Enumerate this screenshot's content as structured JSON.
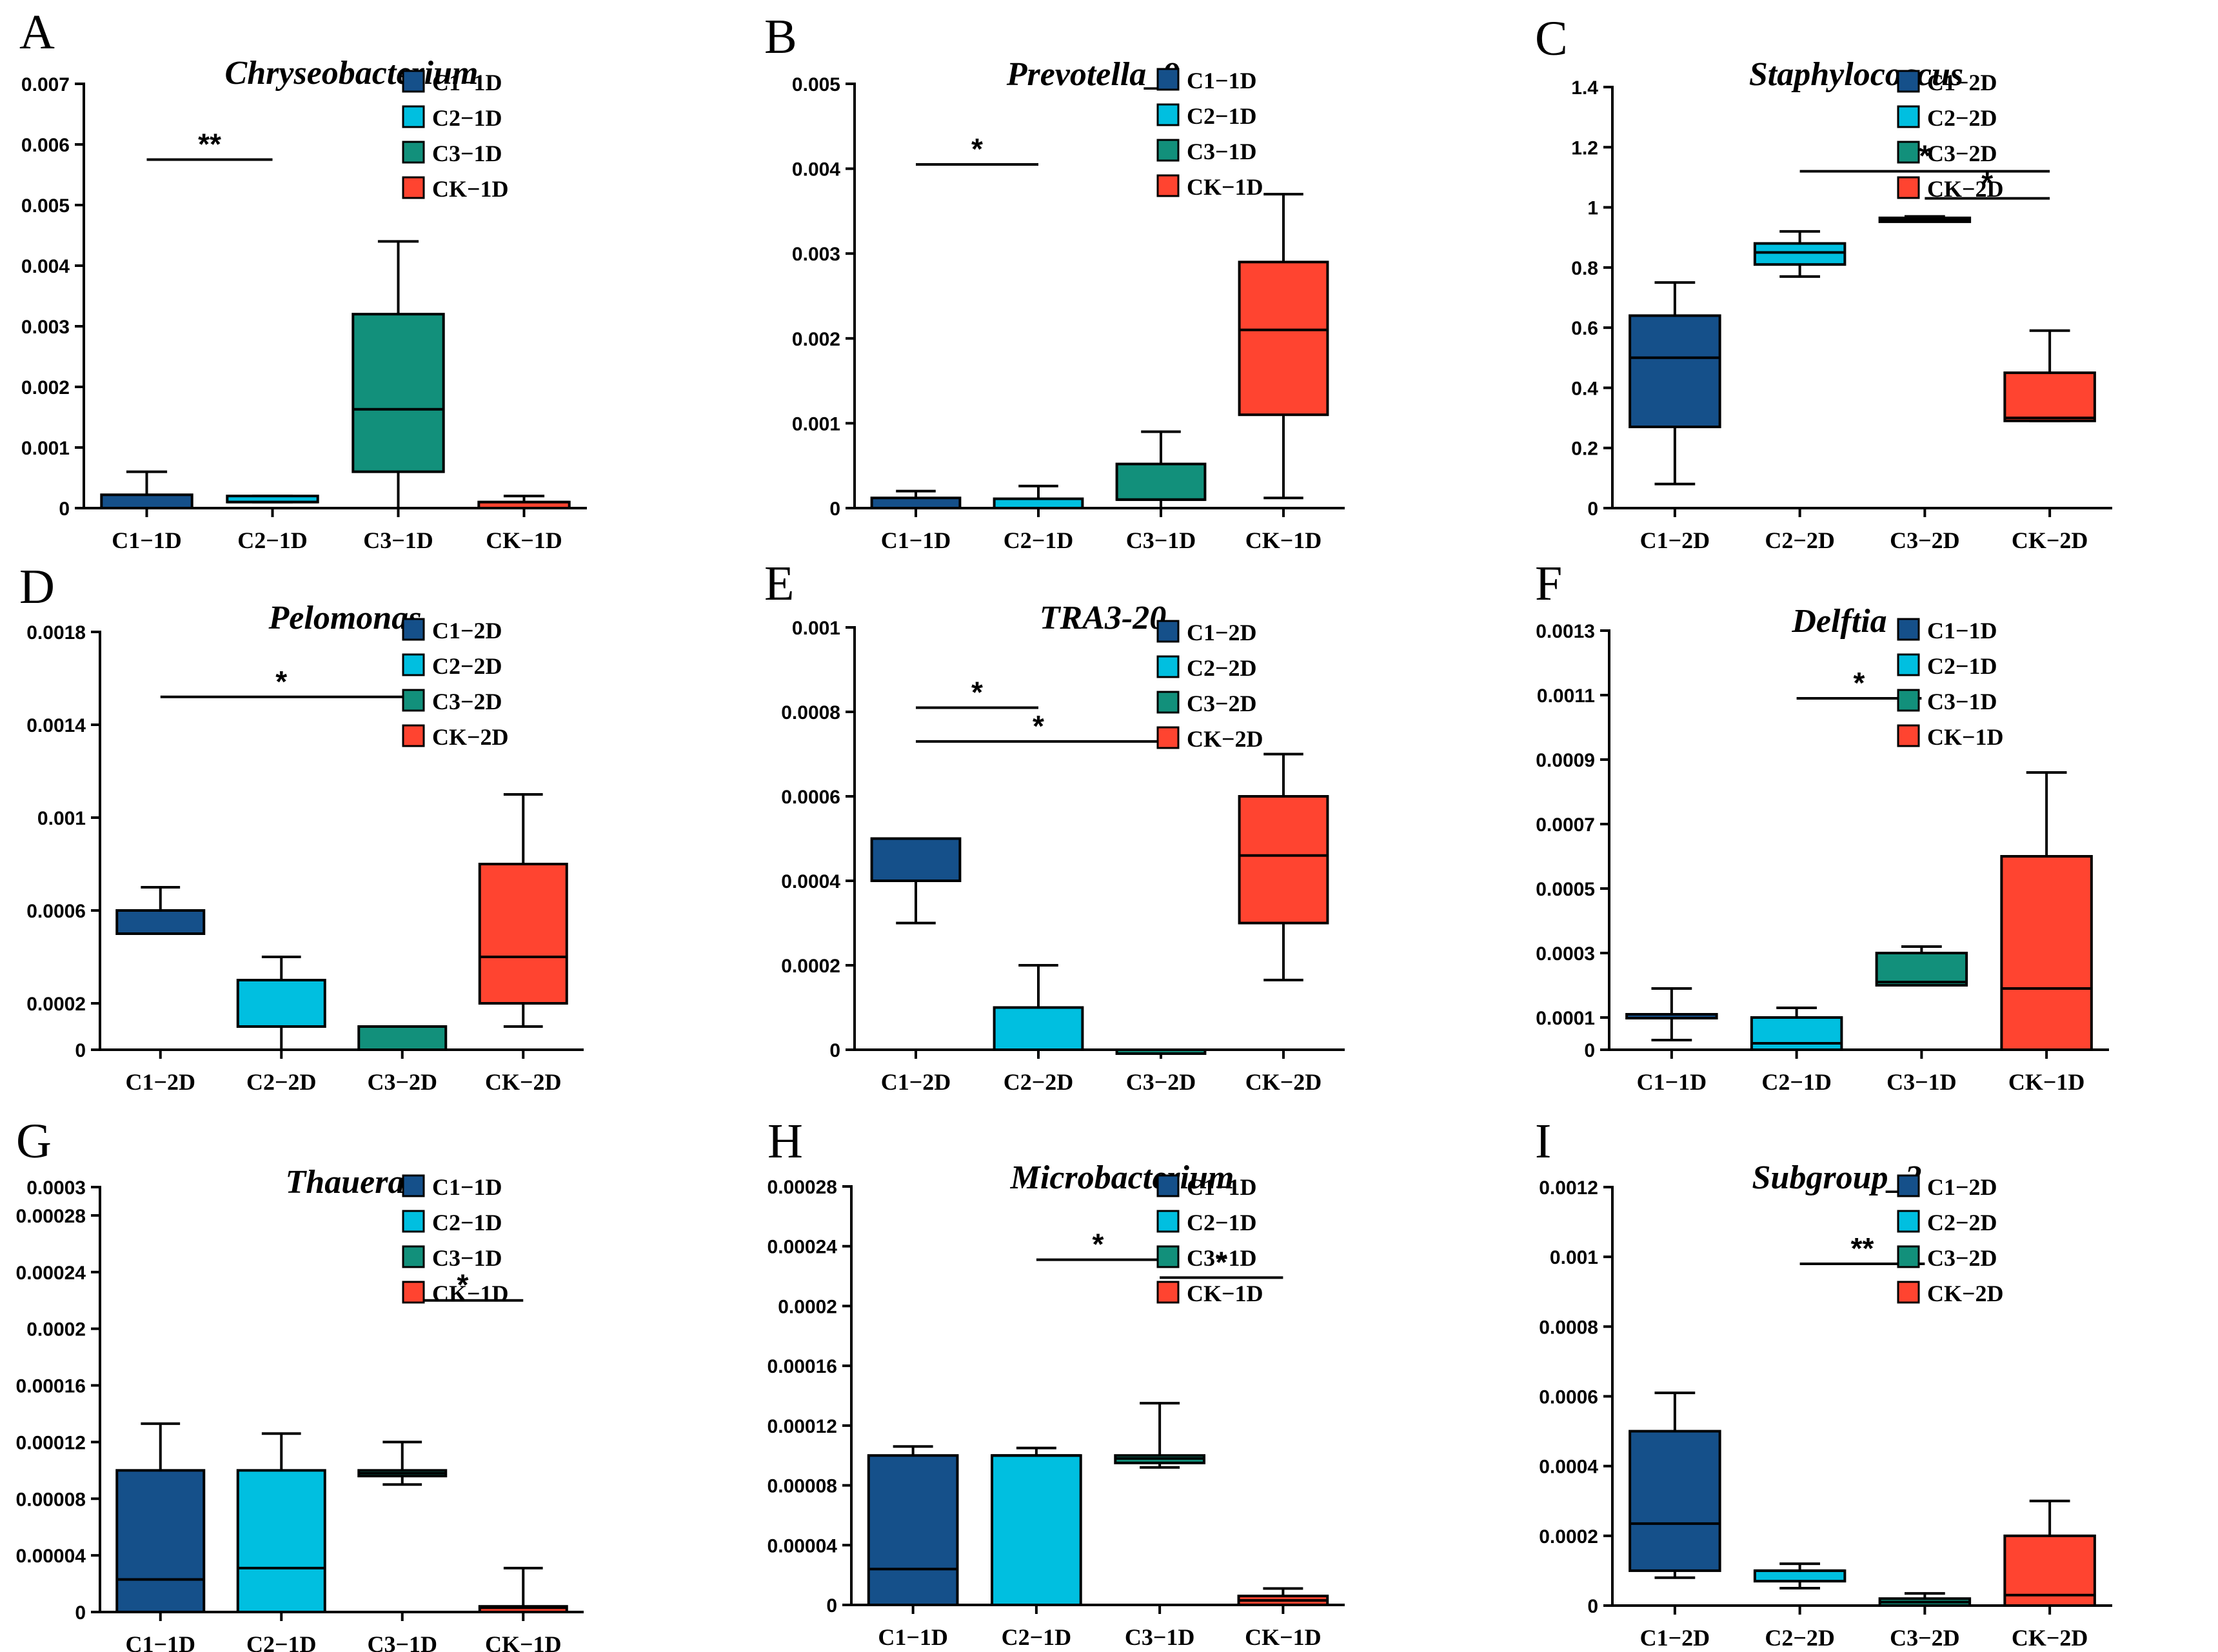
{
  "colors": {
    "C1": "#15508a",
    "C2": "#00bfe0",
    "C3": "#12907b",
    "CK": "#ff4430",
    "C1_dark": "#234a80"
  },
  "chart_data": [
    {
      "letter": "A",
      "type": "box",
      "title": "Chryseobacterium",
      "legend": [
        "C1−1D",
        "C2−1D",
        "C3−1D",
        "CK−1D"
      ],
      "categories": [
        "C1−1D",
        "C2−1D",
        "C3−1D",
        "CK−1D"
      ],
      "y_ticks": [
        0,
        0.001,
        0.002,
        0.003,
        0.004,
        0.005,
        0.006,
        0.007
      ],
      "y_tick_labels": [
        "0",
        "0.001",
        "0.002",
        "0.003",
        "0.004",
        "0.005",
        "0.006",
        "0.007"
      ],
      "ylim": [
        0,
        0.007
      ],
      "boxes": [
        {
          "min": 0,
          "q1": 0,
          "median": 0,
          "q3": 0.00022,
          "max": 0.0006
        },
        {
          "min": 0.0001,
          "q1": 0.0001,
          "median": 0.0001,
          "q3": 0.0002,
          "max": 0.0002
        },
        {
          "min": 0,
          "q1": 0.0006,
          "median": 0.00163,
          "q3": 0.0032,
          "max": 0.0044
        },
        {
          "min": 0,
          "q1": 0,
          "median": 0.0001,
          "q3": 0.0001,
          "max": 0.0002
        }
      ],
      "significance": [
        {
          "from": 0,
          "to": 1,
          "y": 0.00575,
          "label": "**"
        }
      ]
    },
    {
      "letter": "B",
      "type": "box",
      "title": "Prevotella_9",
      "legend": [
        "C1−1D",
        "C2−1D",
        "C3−1D",
        "CK−1D"
      ],
      "categories": [
        "C1−1D",
        "C2−1D",
        "C3−1D",
        "CK−1D"
      ],
      "y_ticks": [
        0,
        0.001,
        0.002,
        0.003,
        0.004,
        0.005
      ],
      "y_tick_labels": [
        "0",
        "0.001",
        "0.002",
        "0.003",
        "0.004",
        "0.005"
      ],
      "ylim": [
        0,
        0.005
      ],
      "boxes": [
        {
          "min": 0,
          "q1": 0,
          "median": 0,
          "q3": 0.00012,
          "max": 0.0002
        },
        {
          "min": 0,
          "q1": 0,
          "median": 0,
          "q3": 0.00011,
          "max": 0.00026
        },
        {
          "min": 0,
          "q1": 0.0001,
          "median": 0.0001,
          "q3": 0.00052,
          "max": 0.0009
        },
        {
          "min": 0.00012,
          "q1": 0.0011,
          "median": 0.0021,
          "q3": 0.0029,
          "max": 0.0037
        }
      ],
      "significance": [
        {
          "from": 0,
          "to": 1,
          "y": 0.00405,
          "label": "*"
        }
      ]
    },
    {
      "letter": "C",
      "type": "box",
      "title": "Staphylococcus",
      "legend": [
        "C1−2D",
        "C2−2D",
        "C3−2D",
        "CK−2D"
      ],
      "categories": [
        "C1−2D",
        "C2−2D",
        "C3−2D",
        "CK−2D"
      ],
      "y_ticks": [
        0,
        0.2,
        0.4,
        0.6,
        0.8,
        1,
        1.2,
        1.4
      ],
      "y_tick_labels": [
        "0",
        "0.2",
        "0.4",
        "0.6",
        "0.8",
        "1",
        "1.2",
        "1.4"
      ],
      "ylim": [
        0,
        1.4
      ],
      "boxes": [
        {
          "min": 0.08,
          "q1": 0.27,
          "median": 0.5,
          "q3": 0.64,
          "max": 0.75
        },
        {
          "min": 0.77,
          "q1": 0.81,
          "median": 0.85,
          "q3": 0.88,
          "max": 0.92
        },
        {
          "min": 0.955,
          "q1": 0.955,
          "median": 0.96,
          "q3": 0.965,
          "max": 0.97
        },
        {
          "min": 0.29,
          "q1": 0.29,
          "median": 0.3,
          "q3": 0.45,
          "max": 0.59
        }
      ],
      "significance": [
        {
          "from": 1,
          "to": 3,
          "y": 1.12,
          "label": "*"
        },
        {
          "from": 2,
          "to": 3,
          "y": 1.03,
          "label": "*"
        }
      ]
    },
    {
      "letter": "D",
      "type": "box",
      "title": "Pelomonas",
      "legend": [
        "C1−2D",
        "C2−2D",
        "C3−2D",
        "CK−2D"
      ],
      "categories": [
        "C1−2D",
        "C2−2D",
        "C3−2D",
        "CK−2D"
      ],
      "y_ticks": [
        0,
        0.0002,
        0.0006,
        0.001,
        0.0014,
        0.0018
      ],
      "y_tick_labels": [
        "0",
        "0.0002",
        "0.0006",
        "0.001",
        "0.0014",
        "0.0018"
      ],
      "ylim": [
        0,
        0.0018
      ],
      "boxes": [
        {
          "min": 0.0005,
          "q1": 0.0005,
          "median": 0.0005,
          "q3": 0.0006,
          "max": 0.0007
        },
        {
          "min": 0,
          "q1": 0.0001,
          "median": 0.0001,
          "q3": 0.0003,
          "max": 0.0004
        },
        {
          "min": 0,
          "q1": 0,
          "median": 0,
          "q3": 0.0001,
          "max": 0.0001
        },
        {
          "min": 0.0001,
          "q1": 0.0002,
          "median": 0.0004,
          "q3": 0.0008,
          "max": 0.0011
        }
      ],
      "significance": [
        {
          "from": 0,
          "to": 2,
          "y": 0.00152,
          "label": "*"
        }
      ]
    },
    {
      "letter": "E",
      "type": "box",
      "title": "TRA3-20",
      "legend": [
        "C1−2D",
        "C2−2D",
        "C3−2D",
        "CK−2D"
      ],
      "categories": [
        "C1−2D",
        "C2−2D",
        "C3−2D",
        "CK−2D"
      ],
      "y_ticks": [
        0,
        0.0002,
        0.0004,
        0.0006,
        0.0008,
        0.001
      ],
      "y_tick_labels": [
        "0",
        "0.0002",
        "0.0004",
        "0.0006",
        "0.0008",
        "0.001"
      ],
      "ylim": [
        0,
        0.001
      ],
      "boxes": [
        {
          "min": 0.0003,
          "q1": 0.0004,
          "median": 0.0004,
          "q3": 0.0005,
          "max": 0.0005
        },
        {
          "min": 0,
          "q1": 0,
          "median": 0,
          "q3": 0.0001,
          "max": 0.0002
        },
        {
          "min": 0,
          "q1": 0,
          "median": 0,
          "q3": 0,
          "max": 0
        },
        {
          "min": 0.000165,
          "q1": 0.0003,
          "median": 0.00046,
          "q3": 0.0006,
          "max": 0.0007
        }
      ],
      "significance": [
        {
          "from": 0,
          "to": 1,
          "y": 0.00081,
          "label": "*"
        },
        {
          "from": 0,
          "to": 2,
          "y": 0.00073,
          "label": "*"
        }
      ]
    },
    {
      "letter": "F",
      "type": "box",
      "title": "Delftia",
      "legend": [
        "C1−1D",
        "C2−1D",
        "C3−1D",
        "CK−1D"
      ],
      "categories": [
        "C1−1D",
        "C2−1D",
        "C3−1D",
        "CK−1D"
      ],
      "y_ticks": [
        0,
        0.0001,
        0.0003,
        0.0005,
        0.0007,
        0.0009,
        0.0011,
        0.0013
      ],
      "y_tick_labels": [
        "0",
        "0.0001",
        "0.0003",
        "0.0005",
        "0.0007",
        "0.0009",
        "0.0011",
        "0.0013"
      ],
      "ylim": [
        0,
        0.0013
      ],
      "boxes": [
        {
          "min": 3e-05,
          "q1": 0.0001,
          "median": 0.00011,
          "q3": 0.00011,
          "max": 0.00019
        },
        {
          "min": 0,
          "q1": 0,
          "median": 2e-05,
          "q3": 0.0001,
          "max": 0.00013
        },
        {
          "min": 0.0002,
          "q1": 0.0002,
          "median": 0.00021,
          "q3": 0.0003,
          "max": 0.00032
        },
        {
          "min": 0,
          "q1": 0,
          "median": 0.00019,
          "q3": 0.0006,
          "max": 0.00086
        }
      ],
      "significance": [
        {
          "from": 1,
          "to": 2,
          "y": 0.00109,
          "label": "*"
        }
      ]
    },
    {
      "letter": "G",
      "type": "box",
      "title": "Thauera",
      "legend": [
        "C1−1D",
        "C2−1D",
        "C3−1D",
        "CK−1D"
      ],
      "categories": [
        "C1−1D",
        "C2−1D",
        "C3−1D",
        "CK−1D"
      ],
      "y_ticks": [
        0,
        4e-05,
        8e-05,
        0.00012,
        0.00016,
        0.0002,
        0.00024,
        0.00028,
        0.0003
      ],
      "y_tick_labels": [
        "0",
        "0.00004",
        "0.00008",
        "0.00012",
        "0.00016",
        "0.0002",
        "0.00024",
        "0.00028",
        "0.0003"
      ],
      "ylim": [
        0,
        0.0003
      ],
      "boxes": [
        {
          "min": 0,
          "q1": 0,
          "median": 2.3e-05,
          "q3": 0.0001,
          "max": 0.000133
        },
        {
          "min": 0,
          "q1": 0,
          "median": 3.1e-05,
          "q3": 0.0001,
          "max": 0.000126
        },
        {
          "min": 9e-05,
          "q1": 9.6e-05,
          "median": 9.8e-05,
          "q3": 0.0001,
          "max": 0.00012
        },
        {
          "min": 0,
          "q1": 0,
          "median": 3e-06,
          "q3": 4e-06,
          "max": 3.1e-05
        }
      ],
      "significance": [
        {
          "from": 2,
          "to": 3,
          "y": 0.00022,
          "label": "*"
        }
      ]
    },
    {
      "letter": "H",
      "type": "box",
      "title": "Microbacterium",
      "legend": [
        "C1−1D",
        "C2−1D",
        "C3−1D",
        "CK−1D"
      ],
      "categories": [
        "C1−1D",
        "C2−1D",
        "C3−1D",
        "CK−1D"
      ],
      "y_ticks": [
        0,
        4e-05,
        8e-05,
        0.00012,
        0.00016,
        0.0002,
        0.00024,
        0.00028
      ],
      "y_tick_labels": [
        "0",
        "0.00004",
        "0.00008",
        "0.00012",
        "0.00016",
        "0.0002",
        "0.00024",
        "0.00028"
      ],
      "ylim": [
        0,
        0.00028
      ],
      "boxes": [
        {
          "min": 0,
          "q1": 0,
          "median": 2.4e-05,
          "q3": 0.0001,
          "max": 0.000106
        },
        {
          "min": 0,
          "q1": 0,
          "median": 0.0001,
          "q3": 0.0001,
          "max": 0.000105
        },
        {
          "min": 9.2e-05,
          "q1": 9.5e-05,
          "median": 9.8e-05,
          "q3": 0.0001,
          "max": 0.000135
        },
        {
          "min": 0,
          "q1": 0,
          "median": 3e-06,
          "q3": 6e-06,
          "max": 1.1e-05
        }
      ],
      "significance": [
        {
          "from": 1,
          "to": 2,
          "y": 0.000231,
          "label": "*"
        },
        {
          "from": 2,
          "to": 3,
          "y": 0.000219,
          "label": "*"
        }
      ]
    },
    {
      "letter": "I",
      "type": "box",
      "title": "Subgroup_2",
      "legend": [
        "C1−2D",
        "C2−2D",
        "C3−2D",
        "CK−2D"
      ],
      "categories": [
        "C1−2D",
        "C2−2D",
        "C3−2D",
        "CK−2D"
      ],
      "y_ticks": [
        0,
        0.0002,
        0.0004,
        0.0006,
        0.0008,
        0.001,
        0.0012
      ],
      "y_tick_labels": [
        "0",
        "0.0002",
        "0.0004",
        "0.0006",
        "0.0008",
        "0.001",
        "0.0012"
      ],
      "ylim": [
        0,
        0.0012
      ],
      "boxes": [
        {
          "min": 8e-05,
          "q1": 0.0001,
          "median": 0.000235,
          "q3": 0.0005,
          "max": 0.00061
        },
        {
          "min": 5e-05,
          "q1": 7e-05,
          "median": 0.0001,
          "q3": 0.0001,
          "max": 0.00012
        },
        {
          "min": 0,
          "q1": 0,
          "median": 1e-05,
          "q3": 2e-05,
          "max": 3.5e-05
        },
        {
          "min": 0,
          "q1": 0,
          "median": 3e-05,
          "q3": 0.0002,
          "max": 0.0003
        }
      ],
      "significance": [
        {
          "from": 1,
          "to": 2,
          "y": 0.00098,
          "label": "**"
        }
      ]
    }
  ]
}
